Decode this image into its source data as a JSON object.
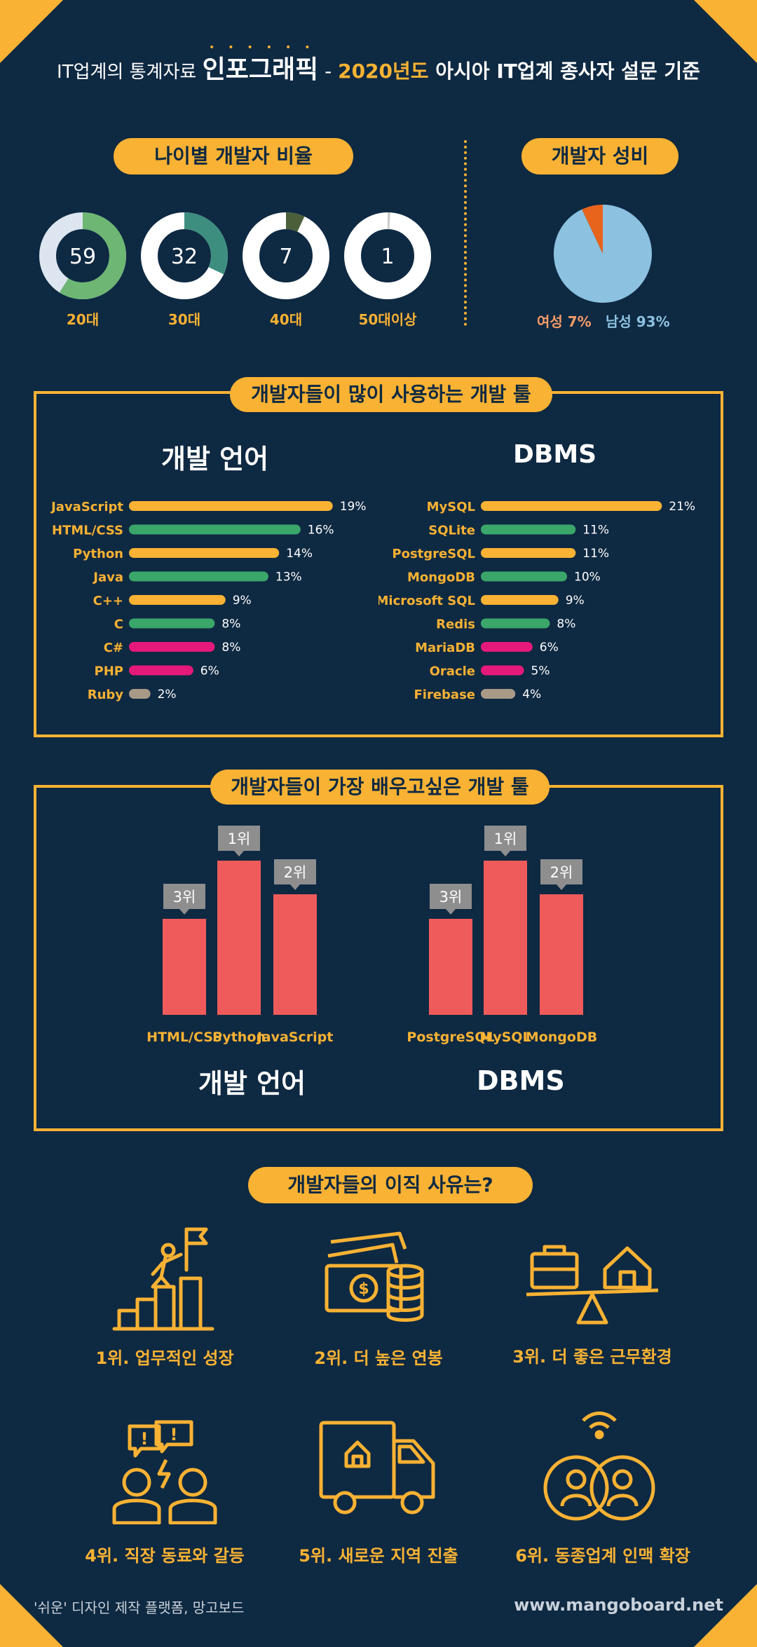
{
  "header": {
    "prefix": "IT업계의 통계자료 ",
    "big": "인포그래픽",
    "dash": " - ",
    "year": "2020년도",
    "rest": " 아시아 IT업계 종사자 설문 기준"
  },
  "colors": {
    "bg": "#0e2942",
    "accent": "#f9b233",
    "green": "#3aa66a",
    "pink": "#e5197a",
    "gray": "#a89a86",
    "red": "#ef5b5b"
  },
  "age": {
    "title": "나이별 개발자 비율",
    "items": [
      {
        "label": "20대",
        "value": 59
      },
      {
        "label": "30대",
        "value": 32
      },
      {
        "label": "40대",
        "value": 7
      },
      {
        "label": "50대이상",
        "value": 1
      }
    ]
  },
  "gender": {
    "title": "개발자 성비",
    "female_label": "여성 7%",
    "male_label": "남성 93%"
  },
  "tools": {
    "title": "개발자들이 많이 사용하는 개발 툴",
    "lang_title": "개발 언어",
    "db_title": "DBMS"
  },
  "learn": {
    "title": "개발자들이 가장 배우고싶은 개발 툴",
    "lang_title": "개발 언어",
    "db_title": "DBMS"
  },
  "quit": {
    "title": "개발자들의 이직 사유는?",
    "items": [
      {
        "label": "1위. 업무적인 성장",
        "icon": "mountain-flag-icon"
      },
      {
        "label": "2위. 더 높은 연봉",
        "icon": "money-icon"
      },
      {
        "label": "3위. 더 좋은 근무환경",
        "icon": "balance-icon"
      },
      {
        "label": "4위. 직장 동료와 갈등",
        "icon": "conflict-icon"
      },
      {
        "label": "5위. 새로운 지역 진출",
        "icon": "moving-truck-icon"
      },
      {
        "label": "6위. 동종업계 인맥 확장",
        "icon": "network-icon"
      }
    ]
  },
  "footer": {
    "left": "'쉬운' 디자인 제작 플랫폼, 망고보드",
    "right": "www.mangoboard.net"
  },
  "chart_data": [
    {
      "type": "pie",
      "title": "나이별 개발자 비율 - 20대",
      "categories": [
        "20대",
        "기타"
      ],
      "values": [
        59,
        41
      ]
    },
    {
      "type": "pie",
      "title": "나이별 개발자 비율 - 30대",
      "categories": [
        "30대",
        "기타"
      ],
      "values": [
        32,
        68
      ]
    },
    {
      "type": "pie",
      "title": "나이별 개발자 비율 - 40대",
      "categories": [
        "40대",
        "기타"
      ],
      "values": [
        7,
        93
      ]
    },
    {
      "type": "pie",
      "title": "나이별 개발자 비율 - 50대이상",
      "categories": [
        "50대이상",
        "기타"
      ],
      "values": [
        1,
        99
      ]
    },
    {
      "type": "pie",
      "title": "개발자 성비",
      "categories": [
        "여성",
        "남성"
      ],
      "values": [
        7,
        93
      ],
      "colors": [
        "#e8641c",
        "#8cc1e0"
      ]
    },
    {
      "type": "bar",
      "orientation": "horizontal",
      "title": "개발 언어",
      "categories": [
        "JavaScript",
        "HTML/CSS",
        "Python",
        "Java",
        "C++",
        "C",
        "C#",
        "PHP",
        "Ruby"
      ],
      "values": [
        19,
        16,
        14,
        13,
        9,
        8,
        8,
        6,
        2
      ],
      "colors": [
        "#f9b233",
        "#3aa66a",
        "#f9b233",
        "#3aa66a",
        "#f9b233",
        "#3aa66a",
        "#e5197a",
        "#e5197a",
        "#a89a86"
      ]
    },
    {
      "type": "bar",
      "orientation": "horizontal",
      "title": "DBMS",
      "categories": [
        "MySQL",
        "SQLite",
        "PostgreSQL",
        "MongoDB",
        "Microsoft SQL",
        "Redis",
        "MariaDB",
        "Oracle",
        "Firebase"
      ],
      "values": [
        21,
        11,
        11,
        10,
        9,
        8,
        6,
        5,
        4
      ],
      "colors": [
        "#f9b233",
        "#3aa66a",
        "#f9b233",
        "#3aa66a",
        "#f9b233",
        "#3aa66a",
        "#e5197a",
        "#e5197a",
        "#a89a86"
      ]
    },
    {
      "type": "bar",
      "title": "개발 언어",
      "categories": [
        "HTML/CSS",
        "Python",
        "JavaScript"
      ],
      "ranks": [
        "3위",
        "1위",
        "2위"
      ],
      "rank_values": [
        3,
        1,
        2
      ]
    },
    {
      "type": "bar",
      "title": "DBMS",
      "categories": [
        "PostgreSQL",
        "MySQL",
        "MongoDB"
      ],
      "ranks": [
        "3위",
        "1위",
        "2위"
      ],
      "rank_values": [
        3,
        1,
        2
      ]
    }
  ]
}
